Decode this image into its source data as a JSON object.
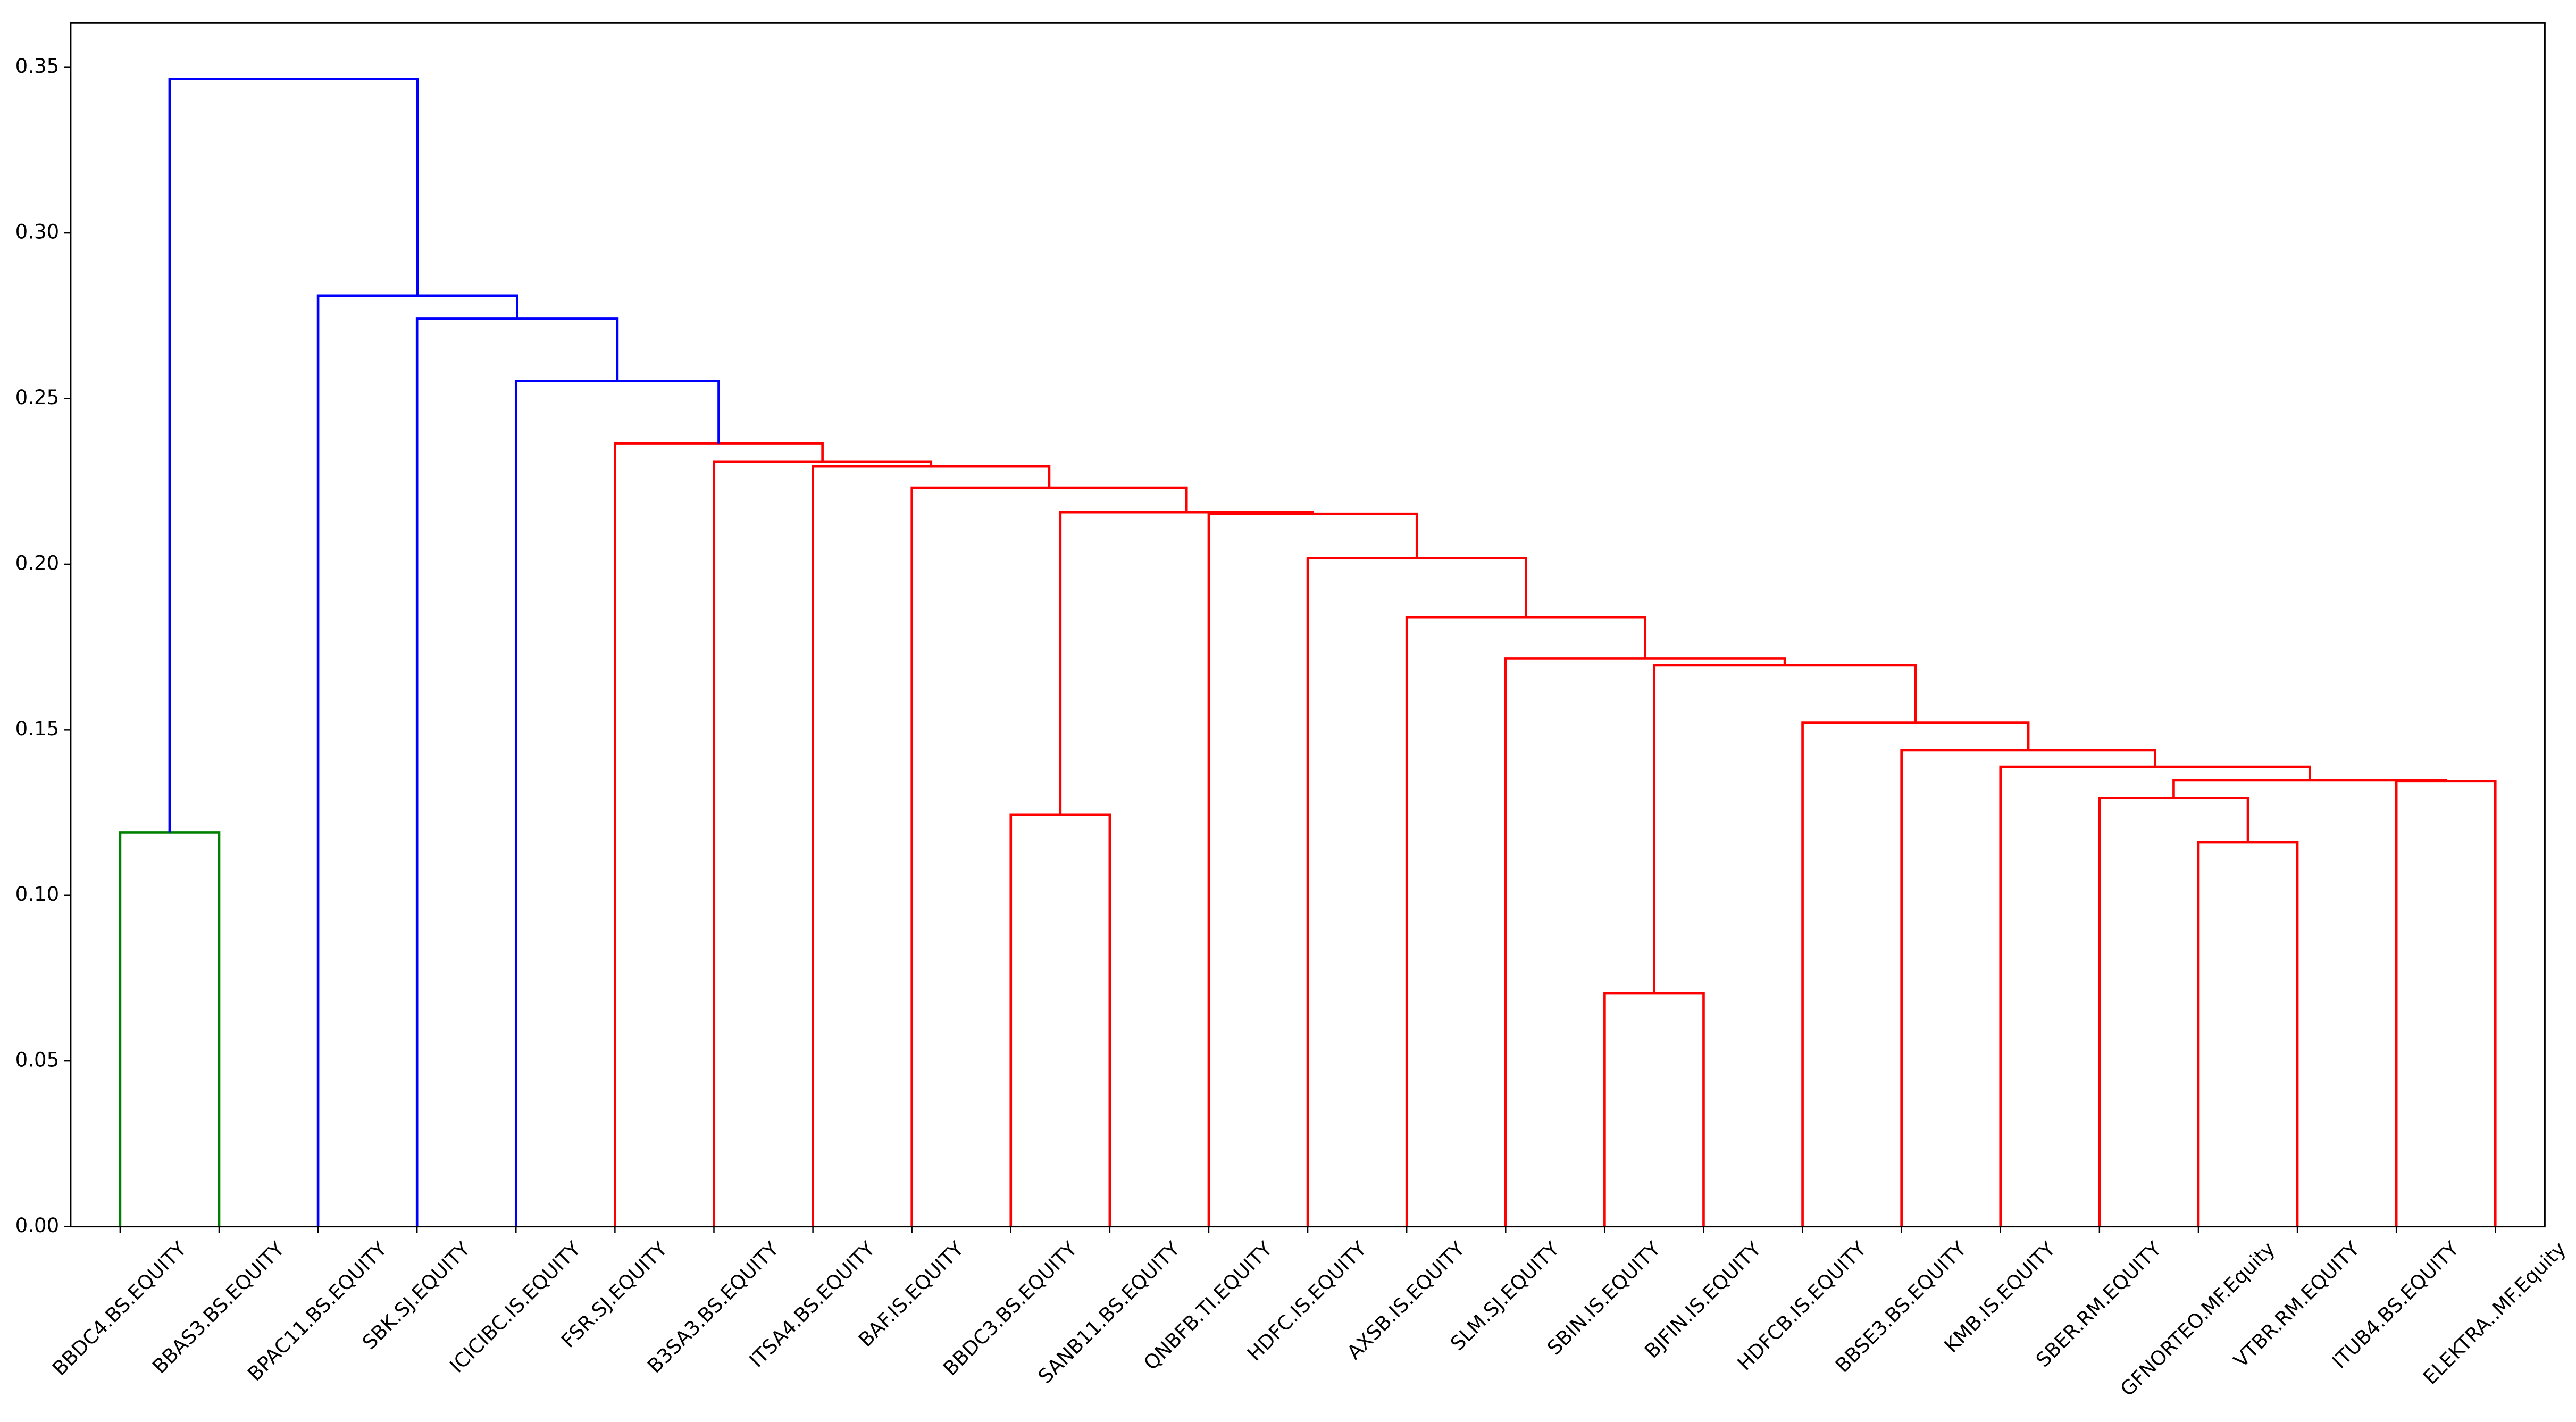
{
  "chart_data": {
    "type": "dendrogram",
    "labels": [
      "BBDC4.BS.EQUITY",
      "BBAS3.BS.EQUITY",
      "BPAC11.BS.EQUITY",
      "SBK.SJ.EQUITY",
      "ICICIBC.IS.EQUITY",
      "FSR.SJ.EQUITY",
      "B3SA3.BS.EQUITY",
      "ITSA4.BS.EQUITY",
      "BAF.IS.EQUITY",
      "BBDC3.BS.EQUITY",
      "SANB11.BS.EQUITY",
      "QNBFB.TI.EQUITY",
      "HDFC.IS.EQUITY",
      "AXSB.IS.EQUITY",
      "SLM.SJ.EQUITY",
      "SBIN.IS.EQUITY",
      "BJFIN.IS.EQUITY",
      "HDFCB.IS.EQUITY",
      "BBSE3.BS.EQUITY",
      "KMB.IS.EQUITY",
      "SBER.RM.EQUITY",
      "GFNORTEO.MF.Equity",
      "VTBR.RM.EQUITY",
      "ITUB4.BS.EQUITY",
      "ELEKTRA..MF.Equity"
    ],
    "links": [
      {
        "children": [
          15,
          16
        ],
        "height": 0.0704,
        "color": "#ff0000"
      },
      {
        "children": [
          21,
          22
        ],
        "height": 0.116,
        "color": "#ff0000"
      },
      {
        "children": [
          0,
          1
        ],
        "height": 0.119,
        "color": "#008000"
      },
      {
        "children": [
          9,
          10
        ],
        "height": 0.1244,
        "color": "#ff0000"
      },
      {
        "children": [
          20,
          26
        ],
        "height": 0.1294,
        "color": "#ff0000"
      },
      {
        "children": [
          23,
          24
        ],
        "height": 0.1345,
        "color": "#ff0000"
      },
      {
        "children": [
          29,
          30
        ],
        "height": 0.1348,
        "color": "#ff0000"
      },
      {
        "children": [
          19,
          31
        ],
        "height": 0.1388,
        "color": "#ff0000"
      },
      {
        "children": [
          18,
          32
        ],
        "height": 0.1438,
        "color": "#ff0000"
      },
      {
        "children": [
          17,
          33
        ],
        "height": 0.1522,
        "color": "#ff0000"
      },
      {
        "children": [
          25,
          34
        ],
        "height": 0.1695,
        "color": "#ff0000"
      },
      {
        "children": [
          14,
          35
        ],
        "height": 0.1715,
        "color": "#ff0000"
      },
      {
        "children": [
          13,
          36
        ],
        "height": 0.1839,
        "color": "#ff0000"
      },
      {
        "children": [
          12,
          37
        ],
        "height": 0.2018,
        "color": "#ff0000"
      },
      {
        "children": [
          11,
          38
        ],
        "height": 0.2152,
        "color": "#ff0000"
      },
      {
        "children": [
          28,
          39
        ],
        "height": 0.2157,
        "color": "#ff0000"
      },
      {
        "children": [
          8,
          40
        ],
        "height": 0.2231,
        "color": "#ff0000"
      },
      {
        "children": [
          7,
          41
        ],
        "height": 0.2295,
        "color": "#ff0000"
      },
      {
        "children": [
          6,
          42
        ],
        "height": 0.231,
        "color": "#ff0000"
      },
      {
        "children": [
          5,
          43
        ],
        "height": 0.2365,
        "color": "#ff0000"
      },
      {
        "children": [
          4,
          44
        ],
        "height": 0.2553,
        "color": "#0000ff"
      },
      {
        "children": [
          3,
          45
        ],
        "height": 0.2741,
        "color": "#0000ff"
      },
      {
        "children": [
          2,
          46
        ],
        "height": 0.2811,
        "color": "#0000ff"
      },
      {
        "children": [
          27,
          47
        ],
        "height": 0.3465,
        "color": "#0000ff"
      }
    ],
    "ylim": [
      0,
      0.3634
    ],
    "yticks": [
      {
        "value": 0,
        "label": "0.00"
      },
      {
        "value": 0.05,
        "label": "0.05"
      },
      {
        "value": 0.1,
        "label": "0.10"
      },
      {
        "value": 0.15,
        "label": "0.15"
      },
      {
        "value": 0.2,
        "label": "0.20"
      },
      {
        "value": 0.25,
        "label": "0.25"
      },
      {
        "value": 0.3,
        "label": "0.30"
      },
      {
        "value": 0.35,
        "label": "0.35"
      }
    ]
  }
}
